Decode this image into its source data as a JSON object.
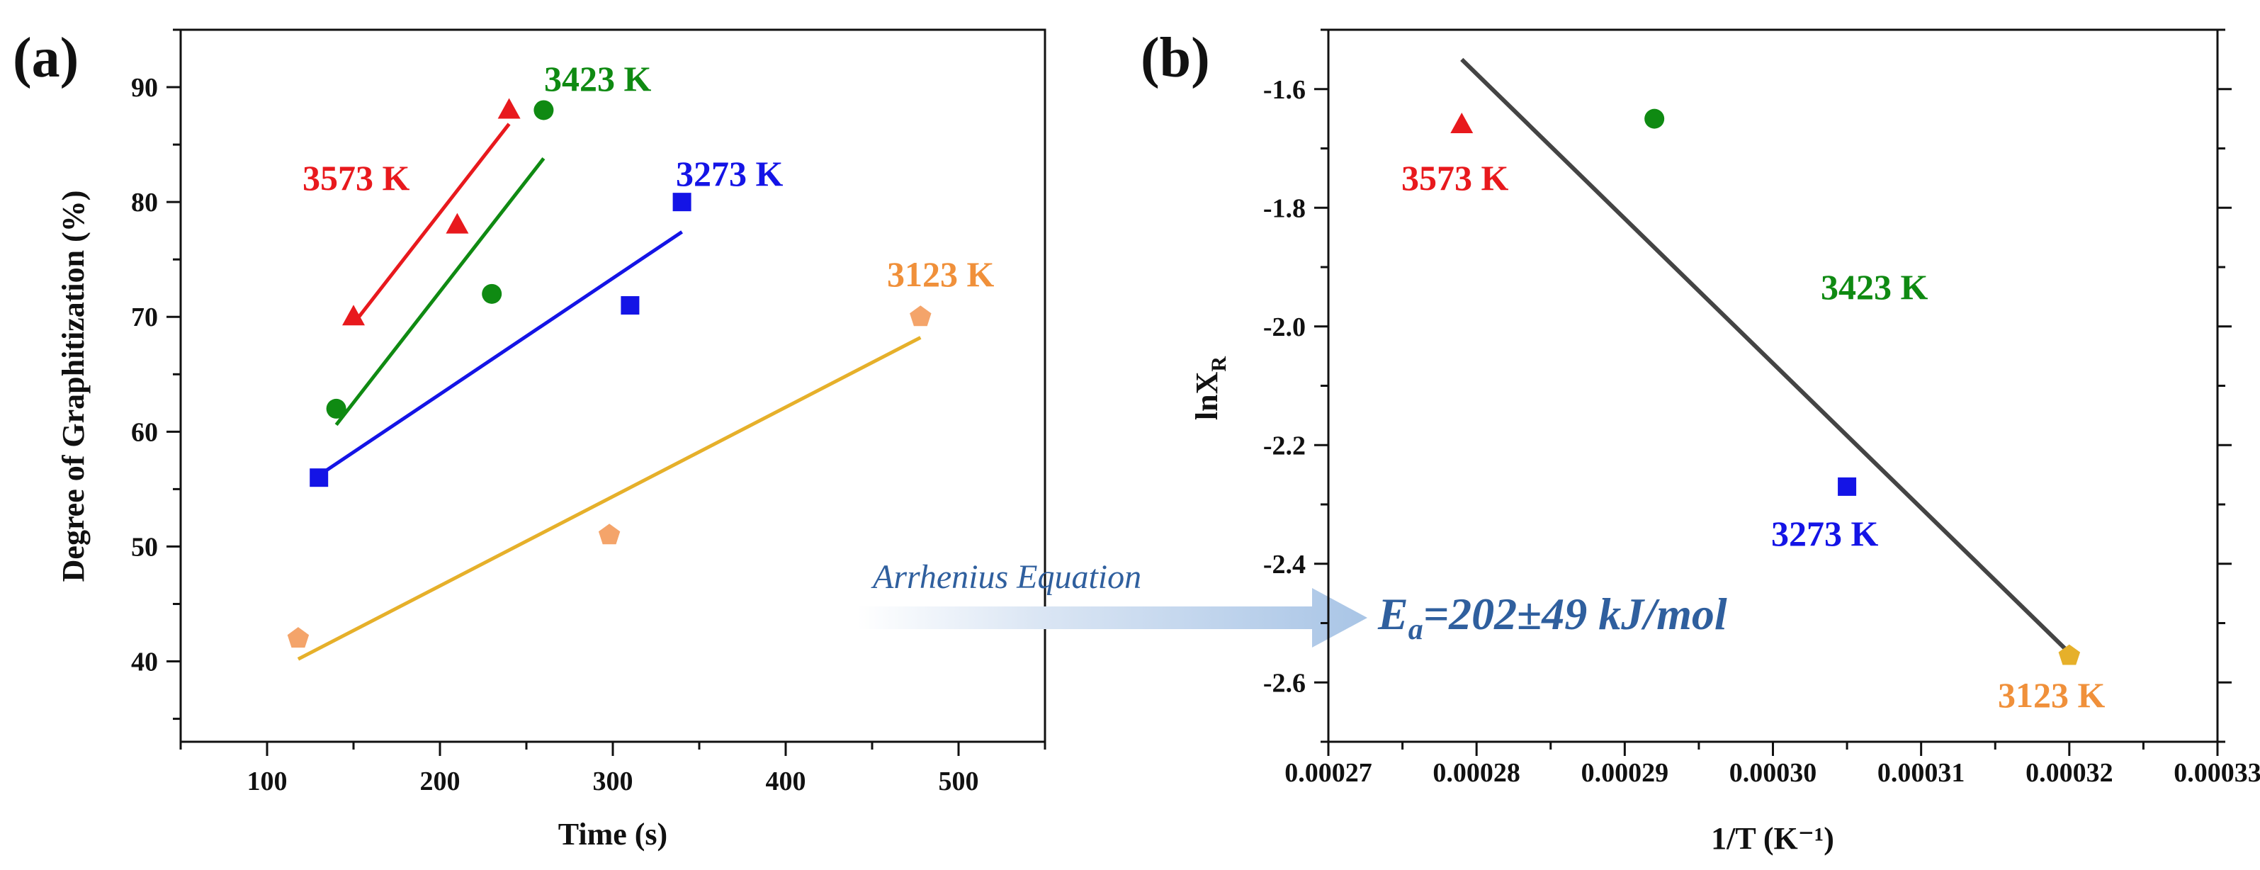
{
  "chart_data": [
    {
      "panel": "(a)",
      "type": "scatter",
      "xlabel": "Time (s)",
      "ylabel": "Degree of Graphitization (%)",
      "xlim": [
        50,
        550
      ],
      "ylim": [
        33,
        95
      ],
      "xticks": [
        100,
        200,
        300,
        400,
        500
      ],
      "yticks": [
        40,
        50,
        60,
        70,
        80,
        90
      ],
      "series": [
        {
          "name": "3573 K",
          "color": "#e8191d",
          "marker": "triangle",
          "x": [
            150,
            210,
            240
          ],
          "y": [
            70,
            78,
            88
          ],
          "fit": [
            [
              150,
              69.4
            ],
            [
              240,
              86.8
            ]
          ]
        },
        {
          "name": "3423 K",
          "color": "#0f8a12",
          "marker": "circle",
          "x": [
            140,
            230,
            260
          ],
          "y": [
            62,
            72,
            88
          ],
          "fit": [
            [
              140,
              60.6
            ],
            [
              260,
              83.8
            ]
          ]
        },
        {
          "name": "3273 K",
          "color": "#1414e6",
          "marker": "square",
          "x": [
            130,
            310,
            340
          ],
          "y": [
            56,
            71,
            80
          ],
          "fit": [
            [
              130,
              56.2
            ],
            [
              340,
              77.4
            ]
          ]
        },
        {
          "name": "3123 K",
          "color": "#f4a46a",
          "line_color": "#e6b02a",
          "marker": "pentagon",
          "x": [
            118,
            298,
            478
          ],
          "y": [
            42,
            51,
            70
          ],
          "fit": [
            [
              118,
              40.2
            ],
            [
              478,
              68.2
            ]
          ]
        }
      ]
    },
    {
      "panel": "(b)",
      "type": "scatter",
      "xlabel": "1/T (K⁻¹)",
      "ylabel_main": "lnX",
      "ylabel_sub": "R",
      "xlim": [
        0.00027,
        0.00033
      ],
      "ylim": [
        -2.7,
        -1.5
      ],
      "xticks": [
        "0.00027",
        "0.00028",
        "0.00029",
        "0.00030",
        "0.00031",
        "0.00032",
        "0.00033"
      ],
      "yticks": [
        "-1.6",
        "-1.8",
        "-2.0",
        "-2.2",
        "-2.4",
        "-2.6"
      ],
      "points": [
        {
          "name": "3573 K",
          "x": 0.000279,
          "y": -1.66,
          "color": "#e8191d",
          "marker": "triangle"
        },
        {
          "name": "3423 K",
          "x": 0.000292,
          "y": -1.65,
          "color": "#0f8a12",
          "marker": "circle"
        },
        {
          "name": "3273 K",
          "x": 0.000305,
          "y": -2.27,
          "color": "#1414e6",
          "marker": "square"
        },
        {
          "name": "3123 K",
          "x": 0.00032,
          "y": -2.555,
          "color": "#e6b02a",
          "marker": "pentagon"
        }
      ],
      "fit_line": [
        [
          0.000279,
          -1.55
        ],
        [
          0.00032,
          -2.55
        ]
      ],
      "fit_color": "#444444"
    }
  ],
  "annotations": {
    "arrow_label": "Arrhenius Equation",
    "ea_main": "E",
    "ea_sub": "a",
    "ea_rest": "=202±49 kJ/mol"
  }
}
